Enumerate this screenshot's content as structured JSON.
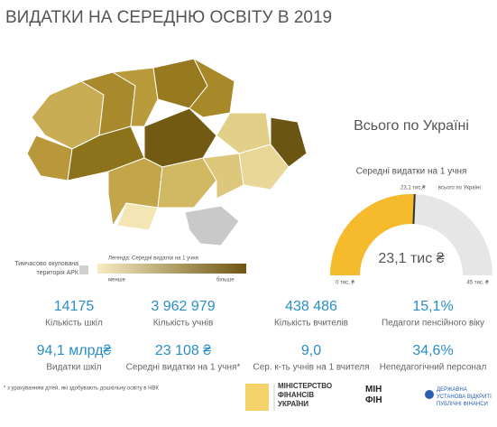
{
  "header": {
    "title": "ВИДАТКИ НА СЕРЕДНЮ ОСВІТУ В 2019"
  },
  "map": {
    "legend_title": "Легенда: Середні видатки на 1 учня",
    "legend_low": "менше",
    "legend_high": "більше",
    "occupied_label": "Тимчасово окупована територія АРК"
  },
  "summary": {
    "title": "Всього по Україні"
  },
  "chart_data": {
    "type": "gauge",
    "title": "Середні видатки на 1 учня",
    "value": 23.1,
    "value_label": "23,1 тис ₴",
    "pointer_label": "23,1 тис.₴",
    "target_label": "всього по Україні",
    "min": 0,
    "max": 45,
    "min_label": "0 тис. ₴",
    "max_label": "45 тис. ₴",
    "color": "#f5bb2c",
    "track_color": "#e6e6e6"
  },
  "kpis": [
    {
      "value": "14175",
      "label": "Кількість шкіл"
    },
    {
      "value": "3 962 979",
      "label": "Кількість учнів"
    },
    {
      "value": "438 486",
      "label": "Кількість вчителів"
    },
    {
      "value": "15,1%",
      "label": "Педагоги пенсійного віку"
    },
    {
      "value": "94,1 млрд₴",
      "label": "Видатки шкіл"
    },
    {
      "value": "23 108 ₴",
      "label": "Середні видатки на 1 учня*"
    },
    {
      "value": "9,0",
      "label": "Сер. к-ть учнів на 1 вчителя"
    },
    {
      "value": "34,6%",
      "label": "Непедагогічний персонал"
    }
  ],
  "footnote": "* з урахуванням дітей, які здобувають дошкільну освіту в НВК",
  "logos": {
    "ministry": "МІНІСТЕРСТВО ФІНАНСІВ УКРАЇНИ",
    "minfin": "МІН ФІН",
    "state": "ДЕРЖАВНА УСТАНОВА ВІДКРИТІ ПУБЛІЧНІ ФІНАНСИ"
  }
}
